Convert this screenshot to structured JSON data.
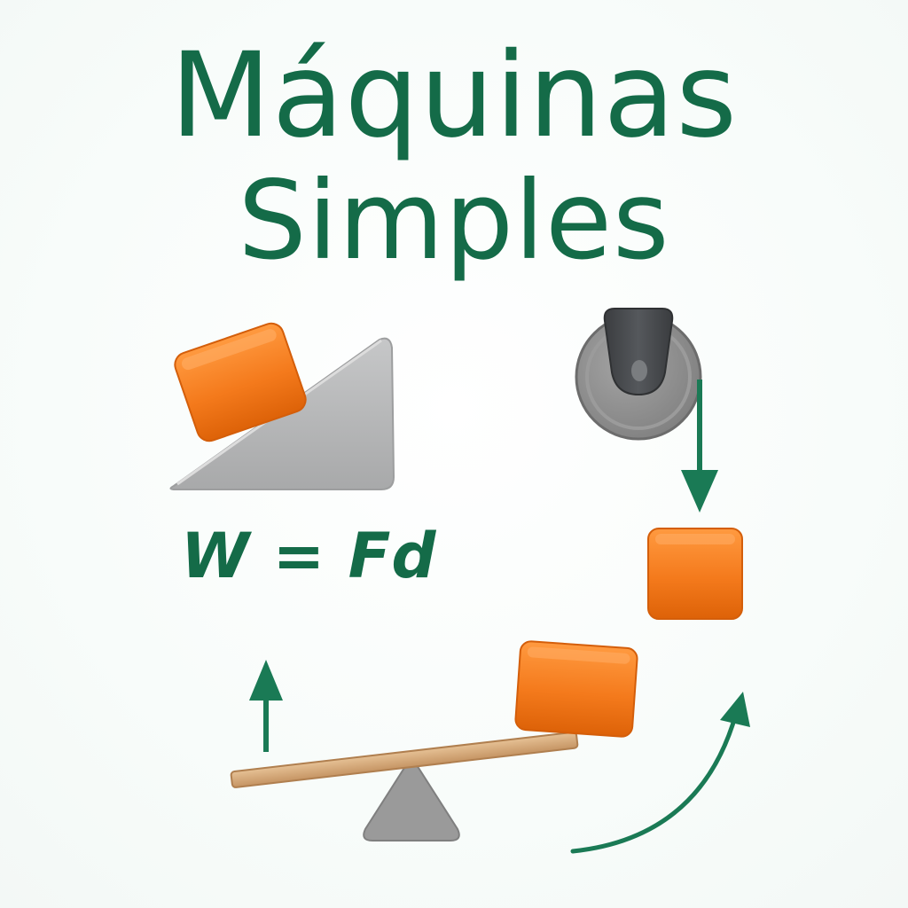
{
  "title": {
    "line1": "Máquinas",
    "line2": "Simples"
  },
  "formula": "W = Fd",
  "colors": {
    "title_green": "#146b48",
    "arrow_green": "#1a7a55",
    "block_orange": "#f47a1c",
    "ramp_gray": "#b5b6b7",
    "pulley_gray": "#8c8c8c",
    "pulley_hub": "#444649",
    "plank_wood": "#d4a877",
    "fulcrum_gray": "#9a9a9a"
  },
  "icons": {
    "inclined_plane": "inclined-plane-icon",
    "pulley": "pulley-icon",
    "lever": "lever-icon"
  }
}
